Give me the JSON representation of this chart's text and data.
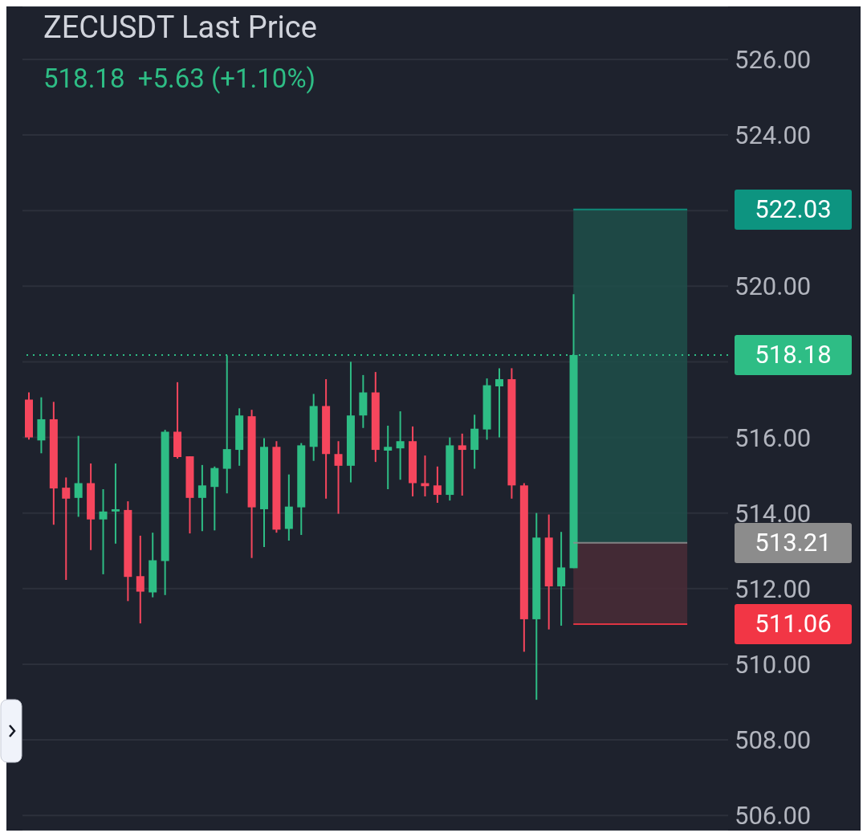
{
  "chart_data": {
    "type": "candlestick",
    "title": "ZECUSDT Last Price",
    "subtitle": "518.18  +5.63 (+1.10%)",
    "categories": [
      null,
      null,
      null,
      null,
      null,
      null,
      null,
      null,
      null,
      null,
      null,
      null,
      null,
      null,
      null,
      null,
      null,
      null,
      null,
      null,
      null,
      null,
      null,
      null,
      null,
      null,
      null,
      null,
      null,
      null,
      null,
      null,
      null,
      null,
      null,
      null,
      null,
      null,
      null,
      null,
      null,
      null,
      null,
      null,
      null,
      null,
      null,
      null,
      null,
      null,
      null,
      null,
      null,
      null,
      null,
      null,
      null
    ],
    "ohlc": [
      [
        517.0,
        517.19,
        515.94,
        516.0
      ],
      [
        515.92,
        517.06,
        515.58,
        516.48
      ],
      [
        516.48,
        516.94,
        513.69,
        514.65
      ],
      [
        514.67,
        514.94,
        512.23,
        514.38
      ],
      [
        514.4,
        516.04,
        513.9,
        514.79
      ],
      [
        514.79,
        515.31,
        513.02,
        513.83
      ],
      [
        513.83,
        514.63,
        512.38,
        514.04
      ],
      [
        514.04,
        515.31,
        513.19,
        514.1
      ],
      [
        514.08,
        514.31,
        511.67,
        512.31
      ],
      [
        512.33,
        513.4,
        511.08,
        511.92
      ],
      [
        511.9,
        513.48,
        511.77,
        512.75
      ],
      [
        512.73,
        516.2,
        511.83,
        516.15
      ],
      [
        516.15,
        517.46,
        515.44,
        515.48
      ],
      [
        515.5,
        515.5,
        513.46,
        514.4
      ],
      [
        514.4,
        515.27,
        513.52,
        514.73
      ],
      [
        514.69,
        515.23,
        513.54,
        515.19
      ],
      [
        515.17,
        518.17,
        514.52,
        515.69
      ],
      [
        515.67,
        516.77,
        515.25,
        516.58
      ],
      [
        516.56,
        516.73,
        512.81,
        514.15
      ],
      [
        514.1,
        515.98,
        513.1,
        515.75
      ],
      [
        515.75,
        515.9,
        513.48,
        513.56
      ],
      [
        513.58,
        515.02,
        513.27,
        514.17
      ],
      [
        514.15,
        515.85,
        513.42,
        515.79
      ],
      [
        515.75,
        517.15,
        515.38,
        516.83
      ],
      [
        516.83,
        517.54,
        514.38,
        515.56
      ],
      [
        515.56,
        515.9,
        513.98,
        515.25
      ],
      [
        515.25,
        518.0,
        514.81,
        516.58
      ],
      [
        516.58,
        517.65,
        516.25,
        517.19
      ],
      [
        517.19,
        517.73,
        515.35,
        515.67
      ],
      [
        515.65,
        516.31,
        514.63,
        515.75
      ],
      [
        515.71,
        516.69,
        514.88,
        515.9
      ],
      [
        515.9,
        516.29,
        514.44,
        514.79
      ],
      [
        514.79,
        515.52,
        514.44,
        514.71
      ],
      [
        514.73,
        515.23,
        514.27,
        514.48
      ],
      [
        514.48,
        516.0,
        514.33,
        515.79
      ],
      [
        515.79,
        516.1,
        514.46,
        515.67
      ],
      [
        515.67,
        516.6,
        515.17,
        516.23
      ],
      [
        516.21,
        517.56,
        515.94,
        517.38
      ],
      [
        517.35,
        517.83,
        516.0,
        517.54
      ],
      [
        517.54,
        517.83,
        514.38,
        514.73
      ],
      [
        514.73,
        514.79,
        510.33,
        511.19
      ],
      [
        511.19,
        514.0,
        509.06,
        513.35
      ],
      [
        513.35,
        513.96,
        510.92,
        512.06
      ],
      [
        512.06,
        513.5,
        511.02,
        512.56
      ],
      [
        512.54,
        519.79,
        512.54,
        518.18
      ],
      null,
      null,
      null,
      null,
      null,
      null,
      null,
      null,
      null,
      null,
      null,
      null
    ],
    "colors": [
      "#f6465d",
      "#2ebd85",
      "#f6465d",
      "#f6465d",
      "#2ebd85",
      "#f6465d",
      "#2ebd85",
      "#2ebd85",
      "#f6465d",
      "#f6465d",
      "#2ebd85",
      "#2ebd85",
      "#f6465d",
      "#f6465d",
      "#2ebd85",
      "#2ebd85",
      "#2ebd85",
      "#2ebd85",
      "#f6465d",
      "#2ebd85",
      "#f6465d",
      "#2ebd85",
      "#2ebd85",
      "#2ebd85",
      "#f6465d",
      "#f6465d",
      "#2ebd85",
      "#2ebd85",
      "#f6465d",
      "#2ebd85",
      "#2ebd85",
      "#f6465d",
      "#f6465d",
      "#f6465d",
      "#2ebd85",
      "#f6465d",
      "#2ebd85",
      "#2ebd85",
      "#2ebd85",
      "#f6465d",
      "#f6465d",
      "#2ebd85",
      "#f6465d",
      "#2ebd85",
      "#2ebd85",
      null,
      null,
      null,
      null,
      null,
      null,
      null,
      null,
      null,
      null,
      null,
      null
    ],
    "ylim": [
      505.6,
      527.4
    ],
    "yticks": [
      {
        "value": 506,
        "label": "506.00"
      },
      {
        "value": 508,
        "label": "508.00"
      },
      {
        "value": 510,
        "label": "510.00"
      },
      {
        "value": 512,
        "label": "512.00"
      },
      {
        "value": 514,
        "label": "514.00"
      },
      {
        "value": 516,
        "label": "516.00"
      },
      {
        "value": 518,
        "label": null
      },
      {
        "value": 520,
        "label": "520.00"
      },
      {
        "value": 522,
        "label": null
      },
      {
        "value": 524,
        "label": "524.00"
      },
      {
        "value": 526,
        "label": "526.00"
      }
    ],
    "grid": "y",
    "bands": [
      {
        "axis": "y",
        "from": 513.21,
        "to": 522.03,
        "color": "#1f4f4a"
      },
      {
        "axis": "y",
        "from": 511.06,
        "to": 513.21,
        "color": "#4a2b37"
      }
    ],
    "ref_lines": [
      {
        "axis": "y",
        "value": 522.03,
        "label": "522.03",
        "color": "#0d9480",
        "line_style": "solid"
      },
      {
        "axis": "y",
        "value": 518.18,
        "label": "518.18",
        "color": "#2ebd85",
        "line_style": "dotted"
      },
      {
        "axis": "y",
        "value": 513.21,
        "label": "513.21",
        "color": "#8c8c8c",
        "line_style": "solid"
      },
      {
        "axis": "y",
        "value": 511.06,
        "label": "511.06",
        "color": "#f23645",
        "line_style": "solid"
      }
    ]
  }
}
